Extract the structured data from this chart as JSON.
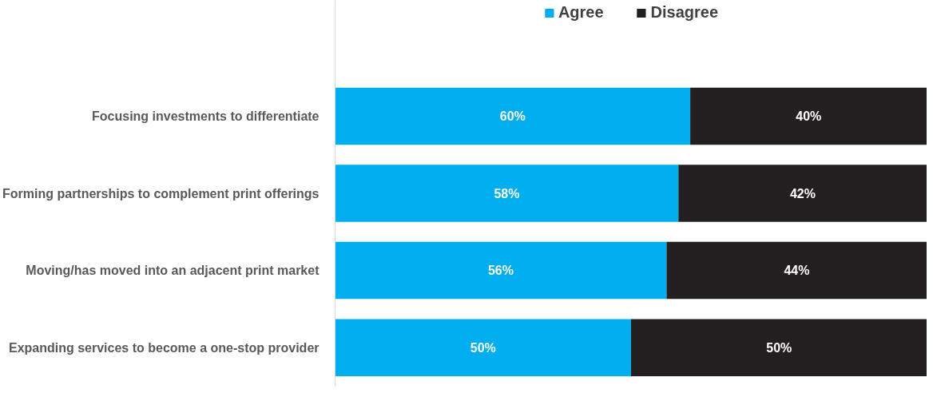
{
  "chart_data": {
    "type": "bar",
    "orientation": "horizontal",
    "stacked": true,
    "legend": "top",
    "tick_labels": "y",
    "categories": [
      "Focusing investments to differentiate",
      "Forming partnerships to complement print offerings",
      "Moving/has moved into an adjacent print market",
      "Expanding services to become a one-stop provider"
    ],
    "series": [
      {
        "name": "Agree",
        "color": "#00aeef",
        "values": [
          60,
          58,
          56,
          50
        ],
        "value_labels": [
          "60%",
          "58%",
          "56%",
          "50%"
        ]
      },
      {
        "name": "Disagree",
        "color": "#231f20",
        "values": [
          40,
          42,
          44,
          50
        ],
        "value_labels": [
          "40%",
          "42%",
          "44%",
          "50%"
        ]
      }
    ]
  }
}
